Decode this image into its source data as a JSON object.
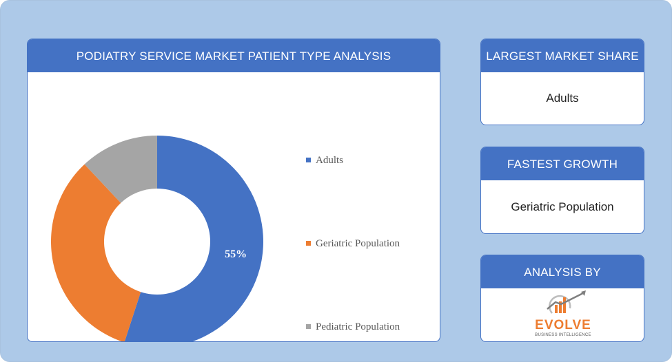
{
  "chart_panel": {
    "title": "PODIATRY SERVICE MARKET PATIENT TYPE ANALYSIS"
  },
  "chart_data": {
    "type": "pie",
    "donut": true,
    "categories": [
      "Adults",
      "Geriatric Population",
      "Pediatric Population"
    ],
    "values": [
      55,
      33,
      12
    ],
    "colors": [
      "#4472c4",
      "#ed7d31",
      "#a5a5a5"
    ],
    "data_labels": [
      "55%",
      "",
      ""
    ],
    "legend": "right"
  },
  "largest_share": {
    "title": "LARGEST MARKET SHARE",
    "value": "Adults"
  },
  "fastest_growth": {
    "title": "FASTEST GROWTH",
    "value": "Geriatric Population"
  },
  "analysis_by": {
    "title": "ANALYSIS BY",
    "logo_name": "EVOLVE",
    "logo_tagline": "BUSINESS INTELLIGENCE",
    "logo_icon": "growth-chart-icon"
  }
}
